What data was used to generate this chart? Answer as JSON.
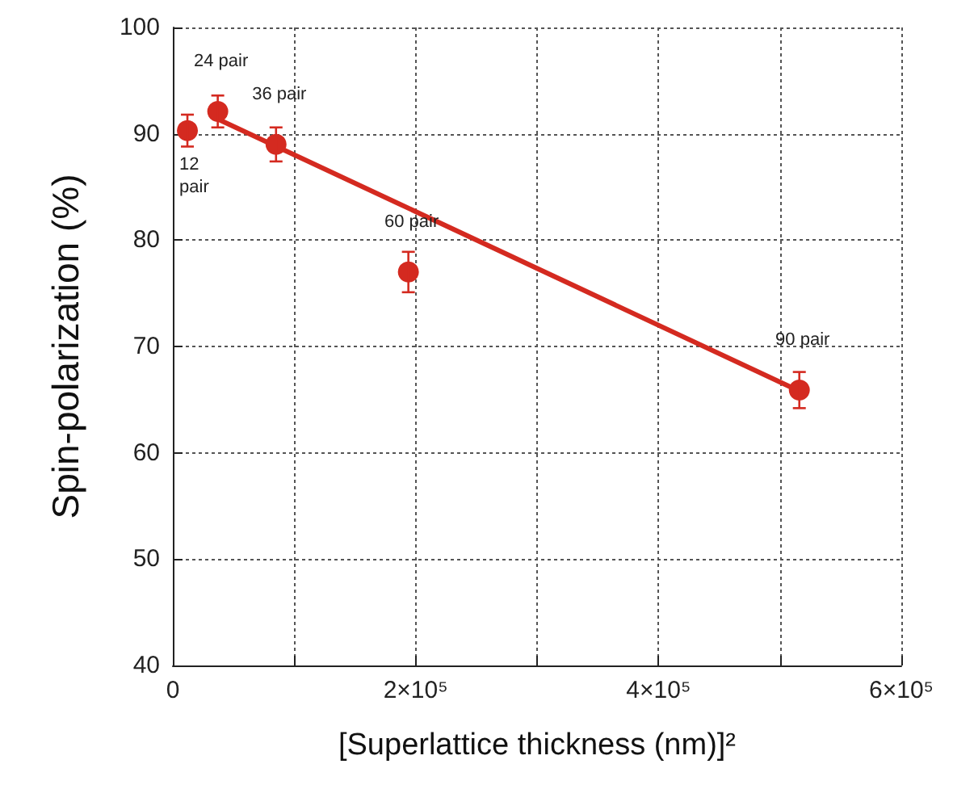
{
  "chart_data": {
    "type": "scatter",
    "xlabel": "[Superlattice thickness (nm)]²",
    "ylabel": "Spin-polarization (%)",
    "xlim": [
      0,
      600000
    ],
    "xticks": [
      0,
      {
        "value": 100000,
        "label": null
      },
      {
        "value": 200000,
        "label": "2×10⁵"
      },
      {
        "value": 300000,
        "label": null
      },
      {
        "value": 400000,
        "label": "4×10⁵"
      },
      {
        "value": 500000,
        "label": null
      },
      {
        "value": 600000,
        "label": "6×10⁵"
      }
    ],
    "ylim": [
      40,
      100
    ],
    "yticks": [
      40,
      50,
      60,
      70,
      80,
      90,
      100
    ],
    "grid": true,
    "marker": "circle",
    "series": [
      {
        "color": "#d42a20",
        "x": [
          12000,
          37000,
          85000,
          194000,
          516000
        ],
        "values": [
          90.3,
          92.1,
          89.0,
          77.0,
          65.9
        ],
        "errors": [
          1.5,
          1.5,
          1.6,
          1.9,
          1.7
        ]
      },
      {
        "type": "line",
        "color": "#d42a20",
        "x": [
          35000,
          516000
        ],
        "values": [
          91.5,
          65.8
        ],
        "marker": "none",
        "line_style": "solid"
      }
    ],
    "annotations": [
      {
        "text": "12\npair",
        "x": 12000,
        "y": 90.3
      },
      {
        "text": "24 pair",
        "x": 37000,
        "y": 92.1
      },
      {
        "text": "36 pair",
        "x": 85000,
        "y": 89.0
      },
      {
        "text": "60 pair",
        "x": 194000,
        "y": 77.0
      },
      {
        "text": "90 pair",
        "x": 516000,
        "y": 65.9
      }
    ]
  }
}
